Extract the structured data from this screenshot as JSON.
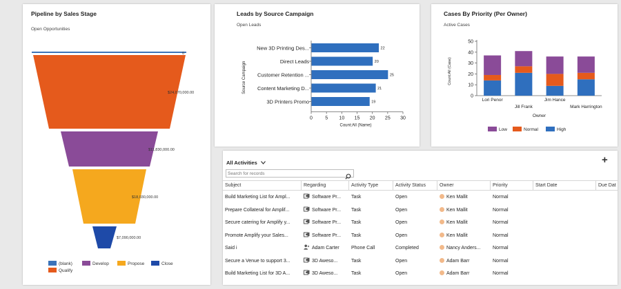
{
  "pipeline": {
    "title": "Pipeline by Sales Stage",
    "subtitle": "Open Opportunities",
    "stages": [
      {
        "label": "0",
        "value": 0,
        "color": "#3b73b9"
      },
      {
        "label": "$24,070,000.00",
        "value": 24070000,
        "color": "#e55a1c"
      },
      {
        "label": "$11,830,000.00",
        "value": 11830000,
        "color": "#8a4b98"
      },
      {
        "label": "$18,030,000.00",
        "value": 18030000,
        "color": "#f5a81e"
      },
      {
        "label": "$7,090,000.00",
        "value": 7090000,
        "color": "#1e4aa8"
      }
    ],
    "legend": [
      {
        "label": "(blank)",
        "color": "#3b73b9"
      },
      {
        "label": "Develop",
        "color": "#8a4b98"
      },
      {
        "label": "Propose",
        "color": "#f5a81e"
      },
      {
        "label": "Close",
        "color": "#1e4aa8"
      },
      {
        "label": "Qualify",
        "color": "#e55a1c"
      }
    ]
  },
  "leads": {
    "title": "Leads by Source Campaign",
    "subtitle": "Open Leads",
    "chart_data": {
      "type": "bar",
      "orientation": "horizontal",
      "categories": [
        "New 3D Printing Des...",
        "Direct Leads",
        "Customer Retention ...",
        "Content Marketing D...",
        "3D Printers Promo"
      ],
      "values": [
        22,
        20,
        25,
        21,
        19
      ],
      "xlabel": "Count:All (Name)",
      "ylabel": "Source Campaign",
      "xlim": [
        0,
        30
      ],
      "xticks": [
        "0",
        "5",
        "10",
        "15",
        "20",
        "25",
        "30"
      ],
      "color": "#2f6fbe"
    }
  },
  "cases": {
    "title": "Cases By Priority (Per Owner)",
    "subtitle": "Active Cases",
    "chart_data": {
      "type": "bar",
      "stacked": true,
      "categories": [
        "Lori Penor",
        "Jill Frank",
        "Jim Hance",
        "Mark Harrington"
      ],
      "series": [
        {
          "name": "High",
          "values": [
            14,
            21,
            9,
            15
          ],
          "color": "#2f6fbe"
        },
        {
          "name": "Normal",
          "values": [
            5,
            6,
            11,
            6
          ],
          "color": "#e55a1c"
        },
        {
          "name": "Low",
          "values": [
            18,
            14,
            16,
            15
          ],
          "color": "#8a4b98"
        }
      ],
      "legend_order": [
        "Low",
        "Normal",
        "High"
      ],
      "xlabel": "Owner",
      "ylabel": "Count:All (Case)",
      "ylim": [
        0,
        50
      ],
      "yticks": [
        "0",
        "10",
        "20",
        "30",
        "40",
        "50"
      ]
    }
  },
  "activities": {
    "view_name": "All Activities",
    "chevron": "chevron-down-icon",
    "add_symbol": "+",
    "search_placeholder": "Search for records",
    "columns": [
      "Subject",
      "Regarding",
      "Activity Type",
      "Activity Status",
      "Owner",
      "Priority",
      "Start Date",
      "Due Dat"
    ],
    "rows": [
      {
        "subject": "Build Marketing List for Ampl...",
        "regarding": "Software Pr...",
        "regarding_icon": "campaign-icon",
        "type": "Task",
        "status": "Open",
        "owner": "Ken Mallit",
        "priority": "Normal"
      },
      {
        "subject": "Prepare Collateral for Amplif...",
        "regarding": "Software Pr...",
        "regarding_icon": "campaign-icon",
        "type": "Task",
        "status": "Open",
        "owner": "Ken Mallit",
        "priority": "Normal"
      },
      {
        "subject": "Secure catering for Amplify y...",
        "regarding": "Software Pr...",
        "regarding_icon": "campaign-icon",
        "type": "Task",
        "status": "Open",
        "owner": "Ken Mallit",
        "priority": "Normal"
      },
      {
        "subject": "Promote Amplify your Sales...",
        "regarding": "Software Pr...",
        "regarding_icon": "campaign-icon",
        "type": "Task",
        "status": "Open",
        "owner": "Ken Mallit",
        "priority": "Normal"
      },
      {
        "subject": "Said i",
        "regarding": "Adam Carter",
        "regarding_icon": "contact-icon",
        "type": "Phone Call",
        "status": "Completed",
        "owner": "Nancy Anders...",
        "priority": "Normal"
      },
      {
        "subject": "Secure a Venue to support 3...",
        "regarding": "3D Aweso...",
        "regarding_icon": "campaign-icon",
        "type": "Task",
        "status": "Open",
        "owner": "Adam Barr",
        "priority": "Normal"
      },
      {
        "subject": "Build Marketing List for 3D A...",
        "regarding": "3D Aweso...",
        "regarding_icon": "campaign-icon",
        "type": "Task",
        "status": "Open",
        "owner": "Adam Barr",
        "priority": "Normal"
      }
    ]
  }
}
